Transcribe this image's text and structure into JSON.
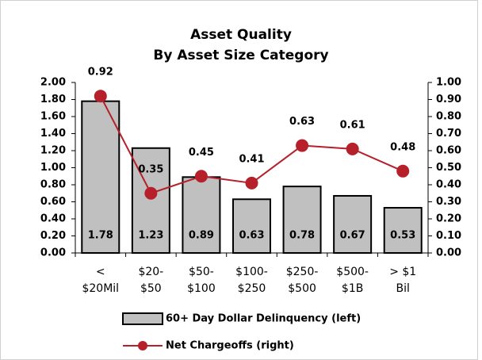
{
  "chart_data": {
    "type": "bar_line",
    "title": "Asset Quality",
    "subtitle": "By Asset Size Category",
    "categories": [
      [
        "<",
        "$20Mil"
      ],
      [
        "$20-",
        "$50"
      ],
      [
        "$50-",
        "$100"
      ],
      [
        "$100-",
        "$250"
      ],
      [
        "$250-",
        "$500"
      ],
      [
        "$500-",
        "$1B"
      ],
      [
        "> $1",
        "Bil"
      ]
    ],
    "series": [
      {
        "name": "60+ Day Dollar Delinquency (left)",
        "type": "bar",
        "color": "#c0c0c0",
        "values": [
          1.78,
          1.23,
          0.89,
          0.63,
          0.78,
          0.67,
          0.53
        ]
      },
      {
        "name": "Net Chargeoffs (right)",
        "type": "line",
        "axis": "y2",
        "color": "#b5202a",
        "values": [
          0.92,
          0.35,
          0.45,
          0.41,
          0.63,
          0.61,
          0.48
        ]
      }
    ],
    "ylim": [
      0,
      2
    ],
    "yticks": [
      {
        "value": 0,
        "label": "0.00"
      },
      {
        "value": 0.2,
        "label": "0.20"
      },
      {
        "value": 0.4,
        "label": "0.40"
      },
      {
        "value": 0.6,
        "label": "0.60"
      },
      {
        "value": 0.8,
        "label": "0.80"
      },
      {
        "value": 1,
        "label": "1.00"
      },
      {
        "value": 1.2,
        "label": "1.20"
      },
      {
        "value": 1.4,
        "label": "1.40"
      },
      {
        "value": 1.6,
        "label": "1.60"
      },
      {
        "value": 1.8,
        "label": "1.80"
      },
      {
        "value": 2,
        "label": "2.00"
      }
    ],
    "y2lim": [
      0,
      1
    ],
    "y2ticks": [
      {
        "value": 0,
        "label": "0.00"
      },
      {
        "value": 0.1,
        "label": "0.10"
      },
      {
        "value": 0.2,
        "label": "0.20"
      },
      {
        "value": 0.3,
        "label": "0.30"
      },
      {
        "value": 0.4,
        "label": "0.40"
      },
      {
        "value": 0.5,
        "label": "0.50"
      },
      {
        "value": 0.6,
        "label": "0.60"
      },
      {
        "value": 0.7,
        "label": "0.70"
      },
      {
        "value": 0.8,
        "label": "0.80"
      },
      {
        "value": 0.9,
        "label": "0.90"
      },
      {
        "value": 1,
        "label": "1.00"
      }
    ],
    "grid": false,
    "legend": "bottom"
  }
}
